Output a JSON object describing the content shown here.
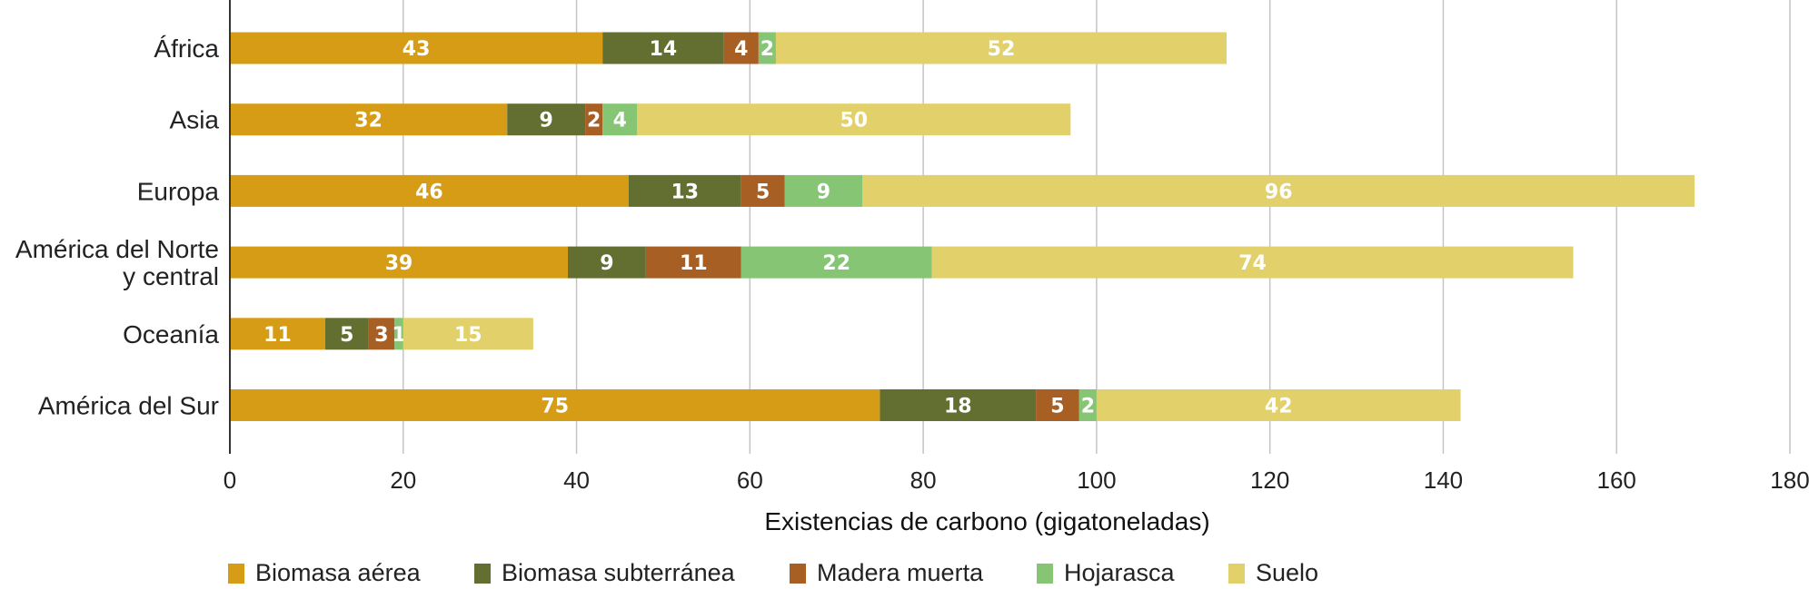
{
  "chart_data": {
    "type": "bar",
    "orientation": "horizontal",
    "stacked": true,
    "title": "",
    "xlabel": "Existencias de carbono (gigatoneladas)",
    "ylabel": "",
    "xlim": [
      0,
      180
    ],
    "xticks": [
      0,
      20,
      40,
      60,
      80,
      100,
      120,
      140,
      160,
      180
    ],
    "grid": true,
    "legend_position": "bottom-left",
    "categories": [
      [
        "África"
      ],
      [
        "Asia"
      ],
      [
        "Europa"
      ],
      [
        "América del Norte",
        "y central"
      ],
      [
        "Oceanía"
      ],
      [
        "América del Sur"
      ]
    ],
    "series": [
      {
        "name": "Biomasa aérea",
        "color": "#D69C16",
        "values": [
          43,
          32,
          46,
          39,
          11,
          75
        ]
      },
      {
        "name": "Biomasa subterránea",
        "color": "#636F31",
        "values": [
          14,
          9,
          13,
          9,
          5,
          18
        ]
      },
      {
        "name": "Madera muerta",
        "color": "#A85F24",
        "values": [
          4,
          2,
          5,
          11,
          3,
          5
        ]
      },
      {
        "name": "Hojarasca",
        "color": "#85C573",
        "values": [
          2,
          4,
          9,
          22,
          1,
          2
        ]
      },
      {
        "name": "Suelo",
        "color": "#E2D06A",
        "values": [
          52,
          50,
          96,
          74,
          15,
          42
        ]
      }
    ]
  }
}
